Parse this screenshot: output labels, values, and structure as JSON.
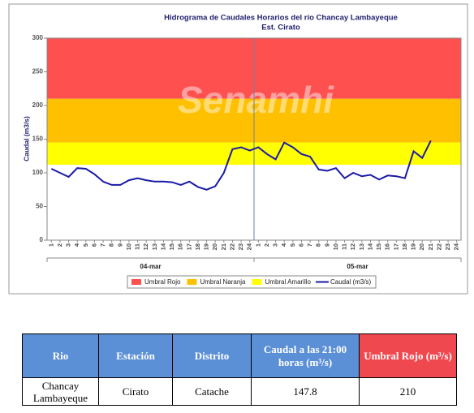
{
  "chart_data": {
    "type": "line",
    "title": "Hidrograma de Caudales Horarios del río Chancay Lambayeque",
    "subtitle": "Est. Cirato",
    "watermark": "Senamhi",
    "y_label": "Caudal  (m3/s)",
    "categories": [
      "1",
      "2",
      "3",
      "4",
      "5",
      "6",
      "7",
      "8",
      "9",
      "10",
      "11",
      "12",
      "13",
      "14",
      "15",
      "16",
      "17",
      "18",
      "19",
      "20",
      "21",
      "22",
      "23",
      "24",
      "1",
      "2",
      "3",
      "4",
      "5",
      "6",
      "7",
      "8",
      "9",
      "10",
      "11",
      "12",
      "13",
      "14",
      "15",
      "16",
      "17",
      "18",
      "19",
      "20",
      "21",
      "22",
      "23",
      "24"
    ],
    "groups": [
      "04-mar",
      "05-mar"
    ],
    "ylim": [
      0,
      300
    ],
    "yticks": [
      0,
      50,
      100,
      150,
      200,
      250,
      300
    ],
    "thresholds": [
      {
        "name": "Umbral Rojo",
        "color": "#ff5050",
        "from": 210,
        "to": 300
      },
      {
        "name": "Umbral Naranja",
        "color": "#ffc000",
        "from": 145,
        "to": 210
      },
      {
        "name": "Umbral Amarillo",
        "color": "#ffff00",
        "from": 112,
        "to": 145
      }
    ],
    "series": [
      {
        "name": "Caudal (m3/s)",
        "color": "#1a1aa6",
        "values": [
          106,
          100,
          94,
          107,
          106,
          98,
          87,
          82,
          82,
          89,
          92,
          89,
          87,
          87,
          86,
          82,
          87,
          79,
          75,
          80,
          100,
          135,
          138,
          133,
          138,
          128,
          120,
          145,
          138,
          128,
          124,
          105,
          103,
          107,
          92,
          100,
          95,
          97,
          90,
          96,
          95,
          92,
          132,
          122,
          147.8,
          null,
          null,
          null
        ]
      }
    ]
  },
  "table": {
    "header": [
      "Rio",
      "Estación",
      "Distrito",
      "Caudal a las 21:00 horas (m³/s)",
      "Umbral Rojo (m³/s)"
    ],
    "rows": [
      [
        "Chancay Lambayeque",
        "Cirato",
        "Catache",
        "147.8",
        "210"
      ]
    ]
  }
}
